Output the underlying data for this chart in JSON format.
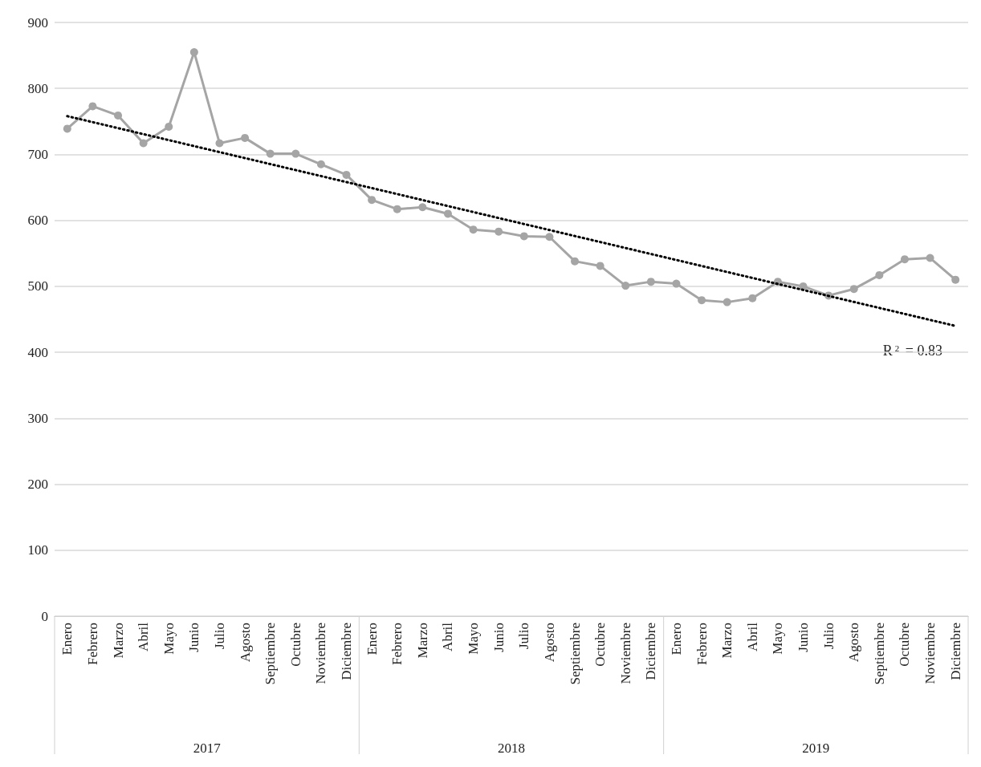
{
  "chart_data": {
    "type": "line",
    "categories": [
      "Enero",
      "Febrero",
      "Marzo",
      "Abril",
      "Mayo",
      "Junio",
      "Julio",
      "Agosto",
      "Septiembre",
      "Octubre",
      "Noviembre",
      "Diciembre",
      "Enero",
      "Febrero",
      "Marzo",
      "Abril",
      "Mayo",
      "Junio",
      "Julio",
      "Agosto",
      "Septiembre",
      "Octubre",
      "Noviembre",
      "Diciembre",
      "Enero",
      "Febrero",
      "Marzo",
      "Abril",
      "Mayo",
      "Junio",
      "Julio",
      "Agosto",
      "Septiembre",
      "Octubre",
      "Noviembre",
      "Diciembre"
    ],
    "series": [
      {
        "color": "#a5a5a5",
        "marker": "circle",
        "line_style": "solid",
        "values": [
          739,
          773,
          759,
          717,
          742,
          855,
          717,
          725,
          701,
          701,
          685,
          669,
          631,
          617,
          620,
          610,
          586,
          583,
          576,
          575,
          538,
          531,
          501,
          507,
          504,
          479,
          476,
          482,
          507,
          500,
          486,
          496,
          517,
          541,
          543,
          510
        ]
      },
      {
        "color": "#000000",
        "type": "line",
        "marker": "none",
        "line_style": "dotted",
        "values": [
          758,
          null,
          null,
          null,
          null,
          null,
          null,
          null,
          null,
          null,
          null,
          null,
          null,
          null,
          null,
          null,
          null,
          null,
          null,
          null,
          null,
          null,
          null,
          null,
          null,
          null,
          null,
          null,
          null,
          null,
          null,
          null,
          null,
          null,
          null,
          440
        ]
      }
    ],
    "annotations": [
      "R$^{2}$ = 0.83",
      "2017",
      "2018",
      "2019"
    ],
    "ylim": [
      0,
      900
    ],
    "yticks": [
      0,
      100,
      200,
      300,
      400,
      500,
      600,
      700,
      800,
      900
    ],
    "grid": "y"
  }
}
